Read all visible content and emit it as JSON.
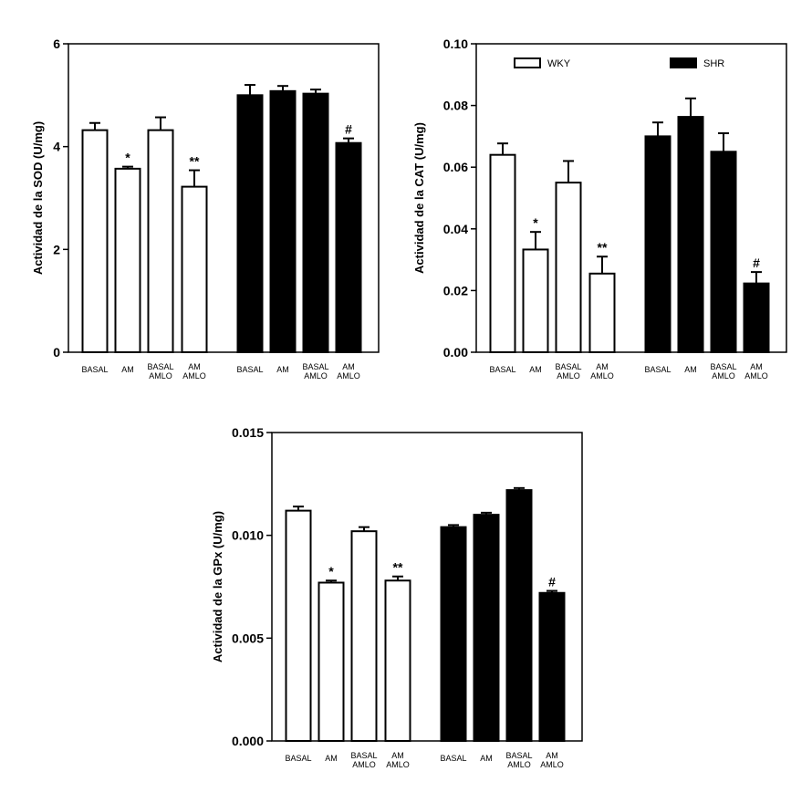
{
  "chart_data": [
    {
      "id": "sod",
      "type": "bar",
      "ylabel": "Actividad de la SOD (U/mg)",
      "ylim": [
        0,
        6
      ],
      "yticks": [
        0,
        2,
        4,
        6
      ],
      "ytick_labels": [
        "0",
        "2",
        "4",
        "6"
      ],
      "categories": [
        "BASAL",
        "AM",
        "BASAL AMLO",
        "AM AMLO",
        "BASAL",
        "AM",
        "BASAL AMLO",
        "AM AMLO"
      ],
      "groups": [
        "WKY",
        "WKY",
        "WKY",
        "WKY",
        "SHR",
        "SHR",
        "SHR",
        "SHR"
      ],
      "values": [
        4.32,
        3.57,
        4.32,
        3.22,
        5.0,
        5.08,
        5.03,
        4.07
      ],
      "errors": [
        0.14,
        0.04,
        0.25,
        0.32,
        0.2,
        0.1,
        0.08,
        0.09
      ],
      "annotations": [
        "",
        "*",
        "",
        "**",
        "",
        "",
        "",
        "#"
      ],
      "legend": null
    },
    {
      "id": "cat",
      "type": "bar",
      "ylabel": "Actividad de la CAT (U/mg)",
      "ylim": [
        0,
        0.1
      ],
      "yticks": [
        0,
        0.02,
        0.04,
        0.06,
        0.08,
        0.1
      ],
      "ytick_labels": [
        "0.00",
        "0.02",
        "0.04",
        "0.06",
        "0.08",
        "0.10"
      ],
      "categories": [
        "BASAL",
        "AM",
        "BASAL AMLO",
        "AM AMLO",
        "BASAL",
        "AM",
        "BASAL AMLO",
        "AM AMLO"
      ],
      "groups": [
        "WKY",
        "WKY",
        "WKY",
        "WKY",
        "SHR",
        "SHR",
        "SHR",
        "SHR"
      ],
      "values": [
        0.064,
        0.0333,
        0.055,
        0.0255,
        0.07,
        0.0763,
        0.065,
        0.0223
      ],
      "errors": [
        0.0037,
        0.0057,
        0.007,
        0.0055,
        0.0045,
        0.006,
        0.006,
        0.0037
      ],
      "annotations": [
        "",
        "*",
        "",
        "**",
        "",
        "",
        "",
        "#"
      ],
      "legend": [
        {
          "label": "WKY",
          "color": "#ffffff"
        },
        {
          "label": "SHR",
          "color": "#000000"
        }
      ]
    },
    {
      "id": "gpx",
      "type": "bar",
      "ylabel": "Actividad de la GPx (U/mg)",
      "ylim": [
        0,
        0.015
      ],
      "yticks": [
        0,
        0.005,
        0.01,
        0.015
      ],
      "ytick_labels": [
        "0.000",
        "0.005",
        "0.010",
        "0.015"
      ],
      "categories": [
        "BASAL",
        "AM",
        "BASAL AMLO",
        "AM AMLO",
        "BASAL",
        "AM",
        "BASAL AMLO",
        "AM AMLO"
      ],
      "groups": [
        "WKY",
        "WKY",
        "WKY",
        "WKY",
        "SHR",
        "SHR",
        "SHR",
        "SHR"
      ],
      "values": [
        0.0112,
        0.0077,
        0.0102,
        0.0078,
        0.0104,
        0.011,
        0.0122,
        0.0072
      ],
      "errors": [
        0.0002,
        0.0001,
        0.0002,
        0.0002,
        0.0001,
        0.0001,
        0.0001,
        0.0001
      ],
      "annotations": [
        "",
        "*",
        "",
        "**",
        "",
        "",
        "",
        "#"
      ],
      "legend": null
    }
  ],
  "colors": {
    "WKY": "#ffffff",
    "SHR": "#000000",
    "axis": "#000000"
  }
}
